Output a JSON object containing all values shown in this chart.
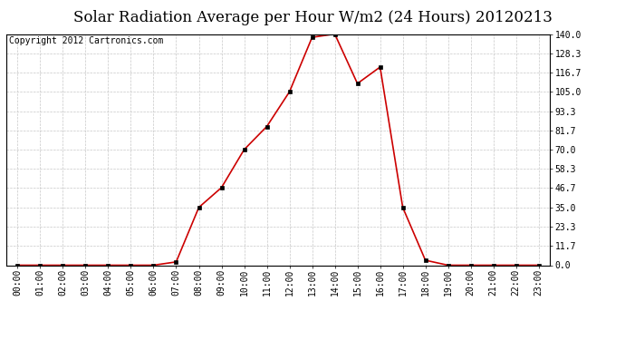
{
  "title": "Solar Radiation Average per Hour W/m2 (24 Hours) 20120213",
  "copyright_text": "Copyright 2012 Cartronics.com",
  "x_labels": [
    "00:00",
    "01:00",
    "02:00",
    "03:00",
    "04:00",
    "05:00",
    "06:00",
    "07:00",
    "08:00",
    "09:00",
    "10:00",
    "11:00",
    "12:00",
    "13:00",
    "14:00",
    "15:00",
    "16:00",
    "17:00",
    "18:00",
    "19:00",
    "20:00",
    "21:00",
    "22:00",
    "23:00"
  ],
  "y_values": [
    0.0,
    0.0,
    0.0,
    0.0,
    0.0,
    0.0,
    0.0,
    2.0,
    35.0,
    47.0,
    70.0,
    84.0,
    105.0,
    138.0,
    140.0,
    110.0,
    120.0,
    35.0,
    3.0,
    0.0,
    0.0,
    0.0,
    0.0,
    0.0
  ],
  "ylim": [
    0,
    140
  ],
  "yticks": [
    0.0,
    11.7,
    23.3,
    35.0,
    46.7,
    58.3,
    70.0,
    81.7,
    93.3,
    105.0,
    116.7,
    128.3,
    140.0
  ],
  "line_color": "#cc0000",
  "marker_color": "#000000",
  "background_color": "#ffffff",
  "plot_bg_color": "#ffffff",
  "grid_color": "#c8c8c8",
  "title_fontsize": 12,
  "copyright_fontsize": 7,
  "tick_fontsize": 7,
  "fig_facecolor": "#ffffff"
}
